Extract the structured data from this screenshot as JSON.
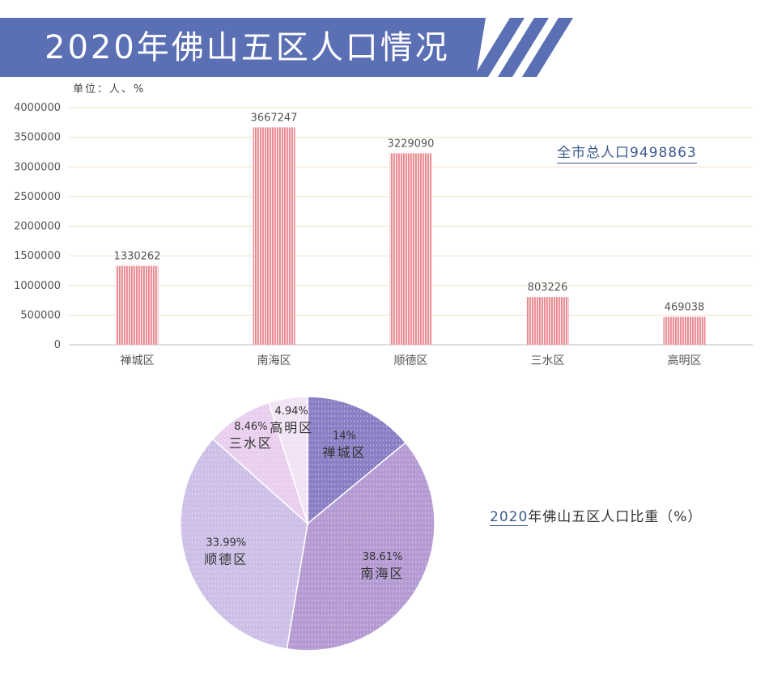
{
  "title": "2020年佛山五区人口情况",
  "unit_label": "单位：人、%",
  "total_label": "全市总人口9498863",
  "colors": {
    "banner": "#5b6fb5",
    "bar_stripe": "#e7878e",
    "bar_gap": "#fbeaea",
    "pie": [
      "#8a7fc4",
      "#b49ad2",
      "#cdbfe6",
      "#e9cfee",
      "#f1e3f4"
    ]
  },
  "chart_data": [
    {
      "type": "bar",
      "title": "",
      "categories": [
        "禅城区",
        "南海区",
        "顺德区",
        "三水区",
        "高明区"
      ],
      "values": [
        1330262,
        3667247,
        3229090,
        803226,
        469038
      ],
      "value_labels": [
        "1330262",
        "3667247",
        "3229090",
        "803226",
        "469038"
      ],
      "yticks": [
        "0",
        "500000",
        "1000000",
        "1500000",
        "2000000",
        "2500000",
        "3000000",
        "3500000",
        "4000000"
      ],
      "ylim": [
        0,
        4000000
      ],
      "grid": true
    },
    {
      "type": "pie",
      "title": "2020年佛山五区人口比重（%）",
      "title_parts": {
        "year": "2020",
        "rest": "年佛山五区人口比重（%）"
      },
      "categories": [
        "禅城区",
        "南海区",
        "顺德区",
        "三水区",
        "高明区"
      ],
      "values": [
        14,
        38.61,
        33.99,
        8.46,
        4.94
      ],
      "value_labels": [
        "14%",
        "38.61%",
        "33.99%",
        "8.46%",
        "4.94%"
      ]
    }
  ]
}
